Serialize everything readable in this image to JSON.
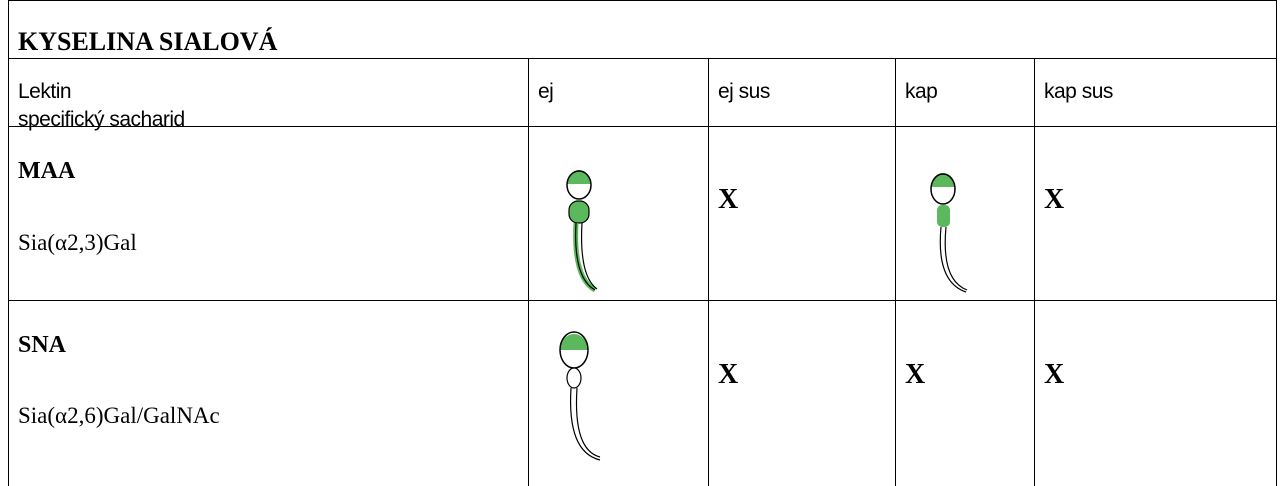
{
  "header": {
    "title": "KYSELINA SIALOVÁ"
  },
  "table": {
    "first_column": [
      "Lektin",
      "specifický sacharid"
    ],
    "columns": [
      "ej",
      "ej sus",
      "kap",
      "kap sus"
    ],
    "rows": [
      {
        "lectin": "MAA",
        "sugar": "Sia(α2,3)Gal",
        "marks": [
          "X",
          "X"
        ]
      },
      {
        "lectin": "SNA",
        "sugar": "Sia(α2,6)Gal/GalNAc",
        "marks": [
          "X",
          "X",
          "X"
        ]
      }
    ]
  }
}
